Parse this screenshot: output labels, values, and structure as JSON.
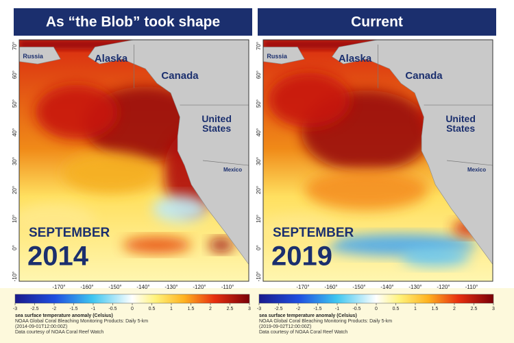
{
  "panels": [
    {
      "title": "As “the Blob” took shape",
      "month": "SEPTEMBER",
      "year": "2014",
      "date": "(2014-09-01T12:00:00Z)"
    },
    {
      "title": "Current",
      "month": "SEPTEMBER",
      "year": "2019",
      "date": "(2019-09-02T12:00:00Z)"
    }
  ],
  "places": {
    "russia": "Russia",
    "alaska": "Alaska",
    "canada": "Canada",
    "united_states": [
      "United",
      "States"
    ],
    "mexico": "Mexico"
  },
  "lat_labels": [
    "70°",
    "60°",
    "50°",
    "40°",
    "30°",
    "20°",
    "10°",
    "0°",
    "-10°"
  ],
  "lon_labels": [
    "-170°",
    "-160°",
    "-150°",
    "-140°",
    "-130°",
    "-120°",
    "-110°"
  ],
  "colorbar": {
    "ticks": [
      -3,
      -2.5,
      -2,
      -1.5,
      -1,
      -0.5,
      0,
      0.5,
      1,
      1.5,
      2,
      2.5,
      3
    ],
    "title": "sea surface temperature anomaly (Celsius)",
    "product": "NOAA Global Coral Bleaching Monitoring Products: Daily 5-km",
    "credit": "Data courtesy of NOAA Coral Reef Watch"
  }
}
